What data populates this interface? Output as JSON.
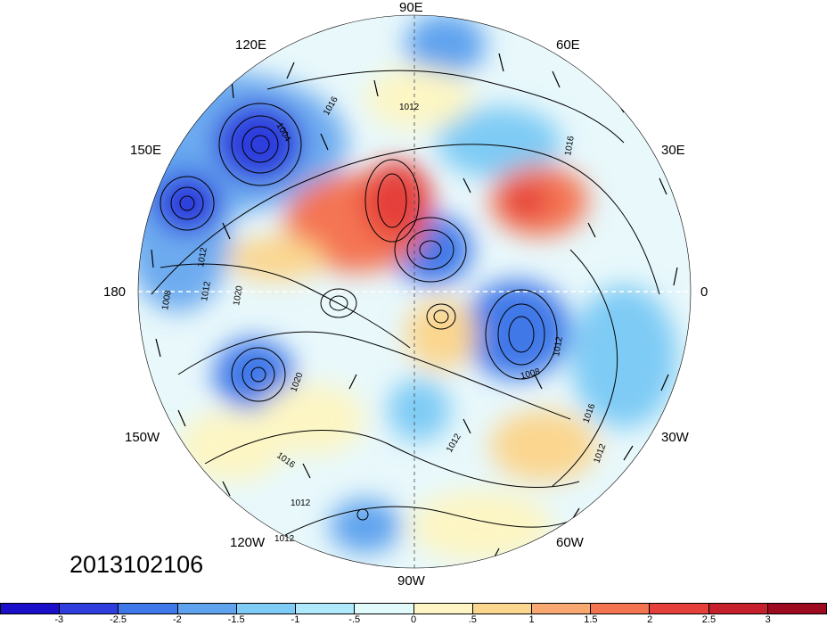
{
  "map": {
    "projection": "north polar stereographic",
    "longitude_labels": {
      "lon_90E": "90E",
      "lon_120E": "120E",
      "lon_60E": "60E",
      "lon_150E": "150E",
      "lon_30E": "30E",
      "lon_180": "180",
      "lon_0": "0",
      "lon_150W": "150W",
      "lon_30W": "30W",
      "lon_120W": "120W",
      "lon_60W": "60W",
      "lon_90W": "90W"
    },
    "contour_labels": {
      "c1": "1016",
      "c2": "1012",
      "c3": "1004",
      "c4": "1012",
      "c5": "1008",
      "c6": "1012",
      "c7": "1020",
      "c8": "1008",
      "c9": "1012",
      "c10": "1016",
      "c11": "1016",
      "c12": "1012",
      "c13": "1012",
      "c14": "1012",
      "c15": "1020",
      "c16": "1016",
      "c17": "1012"
    }
  },
  "timestamp": "2013102106",
  "colorbar": {
    "colors": [
      "#1a0fc8",
      "#2f3ddd",
      "#3f78e8",
      "#5fa3ee",
      "#7ecbf5",
      "#aeeafc",
      "#e1fbfb",
      "#fdf6c4",
      "#fbd68f",
      "#f8a870",
      "#f47452",
      "#e5403b",
      "#c5202c",
      "#9e0a1f"
    ],
    "tick_labels": [
      "-3",
      "-2.5",
      "-2",
      "-1.5",
      "-1",
      "-.5",
      "0",
      ".5",
      "1",
      "1.5",
      "2",
      "2.5",
      "3"
    ]
  }
}
